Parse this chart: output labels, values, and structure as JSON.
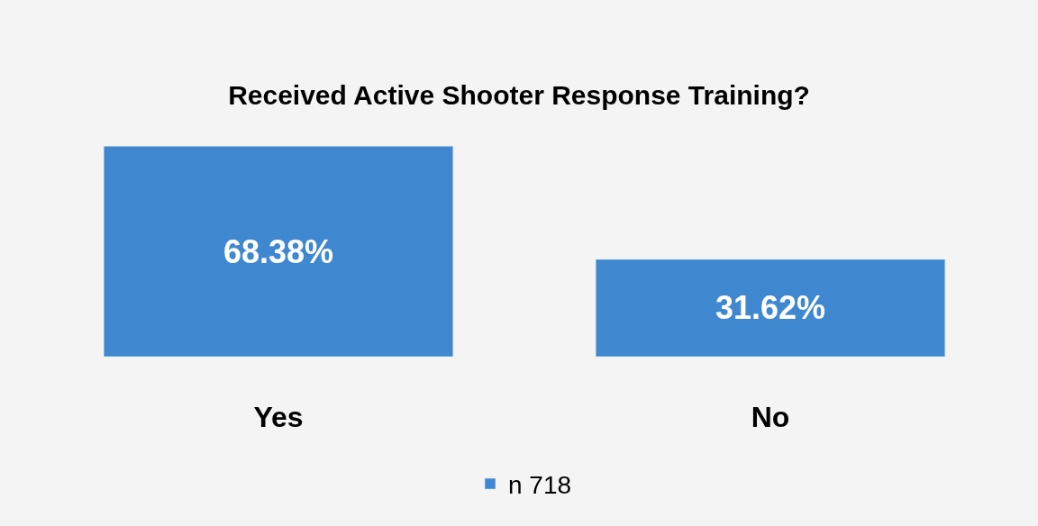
{
  "chart_data": {
    "type": "bar",
    "title": "Received Active Shooter Response Training?",
    "categories": [
      "Yes",
      "No"
    ],
    "series": [
      {
        "name": "n 718",
        "color": "#3f88d0",
        "values": [
          68.38,
          31.62
        ],
        "value_labels": [
          "68.38%",
          "31.62%"
        ]
      }
    ],
    "grid": false,
    "legend": "bottom"
  }
}
